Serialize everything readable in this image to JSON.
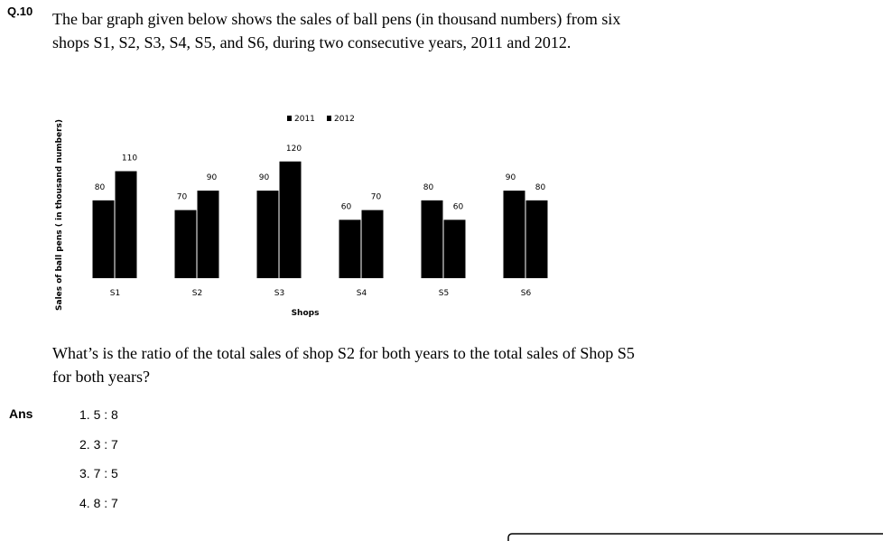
{
  "question_number": "Q.10",
  "question_text": "The bar graph given below shows the sales of ball pens (in thousand numbers) from six shops S1, S2, S3, S4, S5, and S6, during two consecutive years, 2011 and 2012.",
  "chart_data": {
    "type": "bar",
    "categories": [
      "S1",
      "S2",
      "S3",
      "S4",
      "S5",
      "S6"
    ],
    "series": [
      {
        "name": "2011",
        "color": "#000000",
        "values": [
          80,
          70,
          90,
          60,
          80,
          90
        ]
      },
      {
        "name": "2012",
        "color": "#000000",
        "values": [
          110,
          90,
          120,
          70,
          60,
          80
        ]
      }
    ],
    "x_label": "Shops",
    "y_label": "Sales of ball pens ( in thousand numbers)",
    "ylim": [
      0,
      130
    ]
  },
  "question": "What’s is the ratio of the total sales of shop S2 for both years to the total sales of Shop S5 for both years?",
  "answer_label": "Ans",
  "options": [
    "1. 5 : 8",
    "2. 3 : 7",
    "3. 7 : 5",
    "4. 8 : 7"
  ]
}
